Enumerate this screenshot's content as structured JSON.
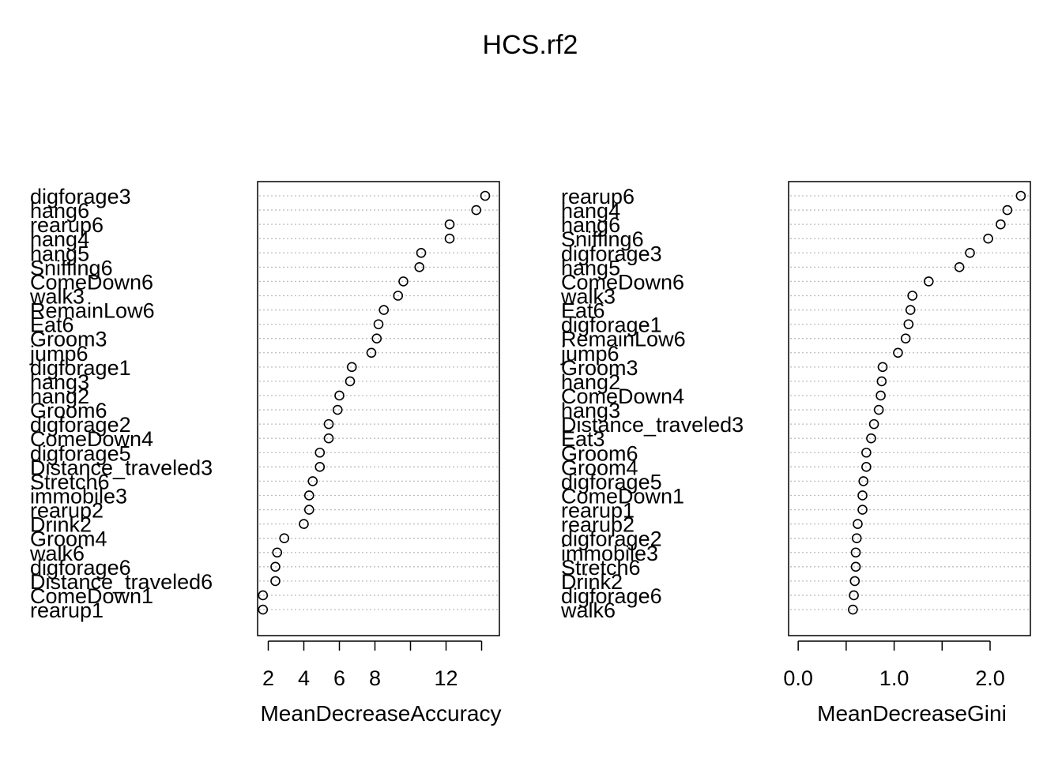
{
  "title": "HCS.rf2",
  "chart_data": [
    {
      "type": "scatter",
      "variant": "dotchart",
      "xlabel": "MeanDecreaseAccuracy",
      "xticks": [
        "2",
        "4",
        "6",
        "8",
        "12"
      ],
      "xtick_values": [
        2,
        4,
        6,
        8,
        12
      ],
      "minor_ticks": [
        10,
        14
      ],
      "xlim": [
        1.4,
        15
      ],
      "grid": "dotted horizontal lines",
      "categories": [
        "digforage3",
        "hang6",
        "rearup6",
        "hang4",
        "hang5",
        "Sniffing6",
        "ComeDown6",
        "walk3",
        "RemainLow6",
        "Eat6",
        "Groom3",
        "jump6",
        "digforage1",
        "hang3",
        "hang2",
        "Groom6",
        "digforage2",
        "ComeDown4",
        "digforage5",
        "Distance_traveled3",
        "Stretch6",
        "immobile3",
        "rearup2",
        "Drink2",
        "Groom4",
        "walk6",
        "digforage6",
        "Distance_traveled6",
        "ComeDown1",
        "rearup1"
      ],
      "values": [
        14.2,
        13.7,
        12.2,
        12.2,
        10.6,
        10.5,
        9.6,
        9.3,
        8.5,
        8.2,
        8.1,
        7.8,
        6.7,
        6.6,
        6.0,
        5.9,
        5.4,
        5.4,
        4.9,
        4.9,
        4.5,
        4.3,
        4.3,
        4.0,
        2.9,
        2.5,
        2.4,
        2.4,
        1.7,
        1.7
      ]
    },
    {
      "type": "scatter",
      "variant": "dotchart",
      "xlabel": "MeanDecreaseGini",
      "xticks": [
        "0.0",
        "1.0",
        "2.0"
      ],
      "xtick_values": [
        0,
        1,
        2
      ],
      "minor_ticks": [
        0.5,
        1.5
      ],
      "xlim": [
        -0.1,
        2.42
      ],
      "grid": "dotted horizontal lines",
      "categories": [
        "rearup6",
        "hang4",
        "hang6",
        "Sniffing6",
        "digforage3",
        "hang5",
        "ComeDown6",
        "walk3",
        "Eat6",
        "digforage1",
        "RemainLow6",
        "jump6",
        "Groom3",
        "hang2",
        "ComeDown4",
        "hang3",
        "Distance_traveled3",
        "Eat3",
        "Groom6",
        "Groom4",
        "digforage5",
        "ComeDown1",
        "rearup1",
        "rearup2",
        "digforage2",
        "immobile3",
        "Stretch6",
        "Drink2",
        "digforage6",
        "walk6"
      ],
      "values": [
        2.32,
        2.18,
        2.11,
        1.98,
        1.79,
        1.68,
        1.36,
        1.19,
        1.17,
        1.15,
        1.12,
        1.04,
        0.88,
        0.87,
        0.86,
        0.84,
        0.79,
        0.76,
        0.71,
        0.71,
        0.68,
        0.67,
        0.67,
        0.62,
        0.61,
        0.6,
        0.6,
        0.59,
        0.58,
        0.57
      ]
    }
  ]
}
